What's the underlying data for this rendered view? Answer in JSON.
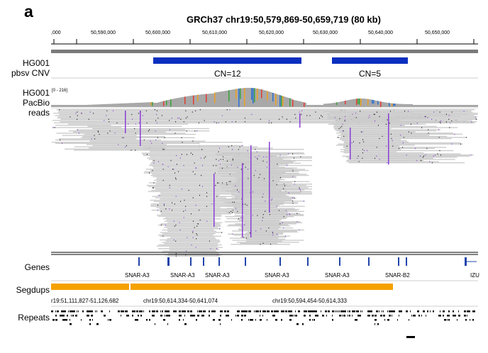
{
  "panel_letter": "a",
  "locus": "GRCh37 chr19:50,579,869-50,659,719 (80 kb)",
  "ruler": {
    "ticks": [
      ",000",
      "50,590,000",
      "50,600,000",
      "50,610,000",
      "50,620,000",
      "50,630,000",
      "50,640,000",
      "50,650,000"
    ]
  },
  "tracks": {
    "cnv": {
      "label_line1": "HG001",
      "label_line2": "pbsv CNV",
      "segments": [
        {
          "label": "CN=12",
          "color": "#0a2fc0"
        },
        {
          "label": "CN=5",
          "color": "#0a2fc0"
        }
      ]
    },
    "reads": {
      "label_line1": "HG001",
      "label_line2": "PacBio",
      "label_line3": "reads",
      "range": "[0 - 216]",
      "read_color": "#cccccc",
      "insertion_color": "#8a3fd6"
    },
    "genes": {
      "label": "Genes",
      "names": [
        "SNAR-A3",
        "SNAR-A3",
        "SNAR-A3",
        "SNAR-A3",
        "SNAR-A3",
        "SNAR-B2",
        "IZU"
      ],
      "color": "#2244aa"
    },
    "segdups": {
      "label": "Segdups",
      "color": "#f5a100",
      "regions": [
        "r19:51,111,827-51,126,682",
        "chr19:50,614,334-50,641,074",
        "chr19:50,594,454-50,614,333"
      ]
    },
    "repeats": {
      "label": "Repeats"
    }
  }
}
